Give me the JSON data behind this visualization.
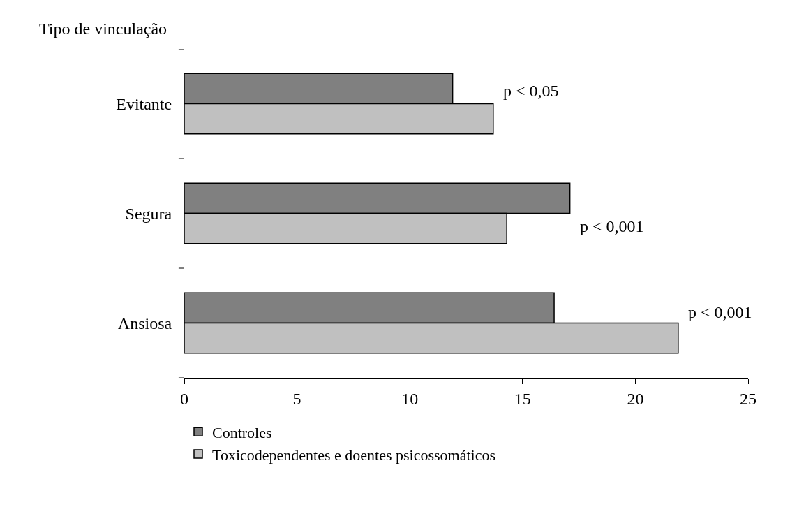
{
  "chart_data": {
    "type": "bar",
    "orientation": "horizontal",
    "ylabel": "Tipo de vinculação",
    "categories": [
      "Evitante",
      "Segura",
      "Ansiosa"
    ],
    "series": [
      {
        "name": "Controles",
        "color": "#808080",
        "values": [
          11.9,
          17.1,
          16.4
        ]
      },
      {
        "name": "Toxicodependentes e doentes psicossomáticos",
        "color": "#c0c0c0",
        "values": [
          13.7,
          14.3,
          21.9
        ]
      }
    ],
    "xlim": [
      0,
      25
    ],
    "xticks": [
      0,
      5,
      10,
      15,
      20,
      25
    ],
    "legend": "bottom",
    "annotations": [
      "p < 0,05",
      "p < 0,001",
      "p < 0,001"
    ]
  }
}
